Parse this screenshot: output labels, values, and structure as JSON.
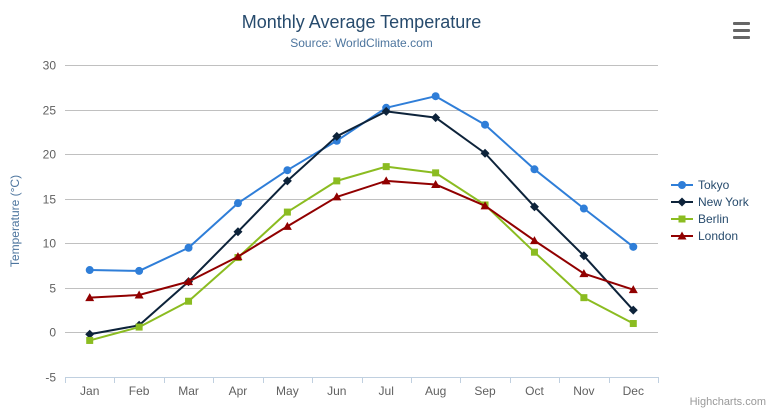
{
  "chart_data": {
    "type": "line",
    "title": "Monthly Average Temperature",
    "subtitle": "Source: WorldClimate.com",
    "categories": [
      "Jan",
      "Feb",
      "Mar",
      "Apr",
      "May",
      "Jun",
      "Jul",
      "Aug",
      "Sep",
      "Oct",
      "Nov",
      "Dec"
    ],
    "series": [
      {
        "name": "Tokyo",
        "color": "#2f7ed8",
        "marker": "circle",
        "values": [
          7.0,
          6.9,
          9.5,
          14.5,
          18.2,
          21.5,
          25.2,
          26.5,
          23.3,
          18.3,
          13.9,
          9.6
        ]
      },
      {
        "name": "New York",
        "color": "#0d233a",
        "marker": "diamond",
        "values": [
          -0.2,
          0.8,
          5.7,
          11.3,
          17.0,
          22.0,
          24.8,
          24.1,
          20.1,
          14.1,
          8.6,
          2.5
        ]
      },
      {
        "name": "Berlin",
        "color": "#8bbc21",
        "marker": "square",
        "values": [
          -0.9,
          0.6,
          3.5,
          8.4,
          13.5,
          17.0,
          18.6,
          17.9,
          14.3,
          9.0,
          3.9,
          1.0
        ]
      },
      {
        "name": "London",
        "color": "#910000",
        "marker": "triangle",
        "values": [
          3.9,
          4.2,
          5.7,
          8.5,
          11.9,
          15.2,
          17.0,
          16.6,
          14.2,
          10.3,
          6.6,
          4.8
        ]
      }
    ],
    "xlabel": "",
    "ylabel": "Temperature (°C)",
    "ylim": [
      -5,
      30
    ],
    "ytick_interval": 5,
    "grid": true,
    "legend_position": "right"
  },
  "credits": {
    "label": "Highcharts.com"
  },
  "colors": {
    "background": "#ffffff",
    "title": "#274b6d",
    "subtitle": "#4d759e",
    "axis_title": "#4d759e",
    "tick_label": "#606060",
    "gridline": "#c0c0c0",
    "axis_line": "#c0d0e0",
    "legend_text": "#274b6d",
    "credits": "#999999",
    "menu_icon": "#666666"
  }
}
